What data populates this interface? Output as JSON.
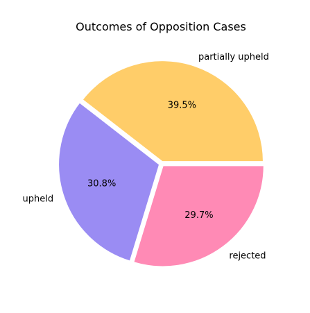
{
  "chart_data": {
    "type": "pie",
    "title": "Outcomes of Opposition Cases",
    "start_angle_deg": 0,
    "direction": "counterclockwise",
    "slices": [
      {
        "label": "partially upheld",
        "percent_label": "39.5%",
        "value": 39.5,
        "color": "#ffcd69"
      },
      {
        "label": "upheld",
        "percent_label": "30.8%",
        "value": 30.8,
        "color": "#9a8cf3"
      },
      {
        "label": "rejected",
        "percent_label": "29.7%",
        "value": 29.7,
        "color": "#ff8ab5"
      }
    ],
    "legend": "none"
  }
}
